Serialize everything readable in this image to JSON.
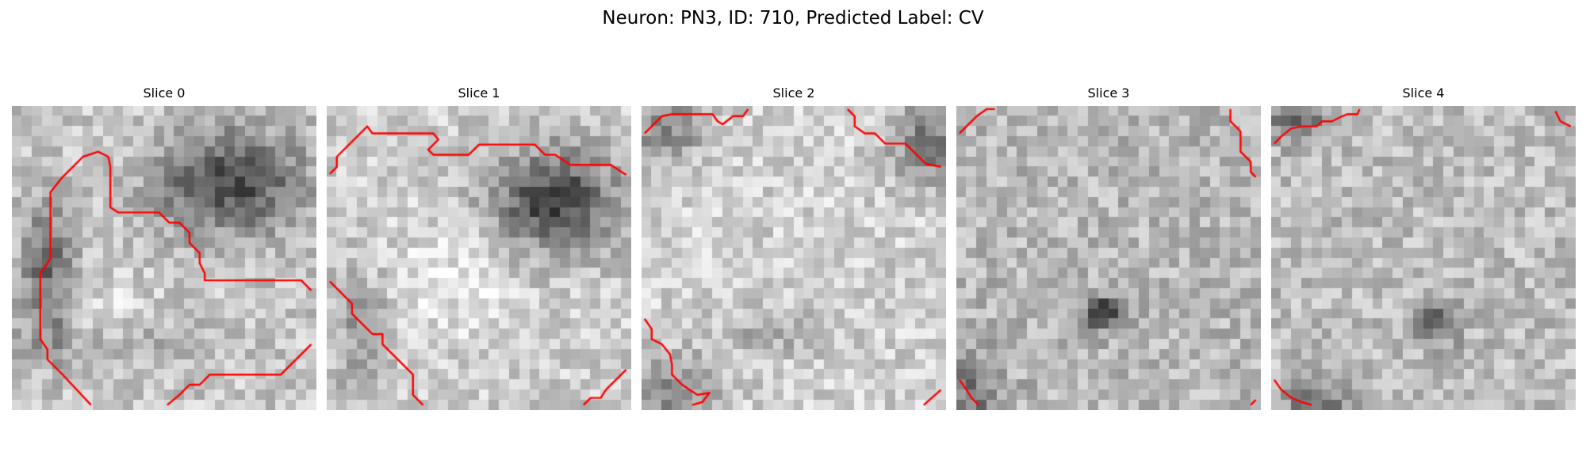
{
  "figure": {
    "title": "Neuron: PN3, ID: 710, Predicted Label: CV"
  },
  "slices": [
    {
      "label": "Slice 0"
    },
    {
      "label": "Slice 1"
    },
    {
      "label": "Slice 2"
    },
    {
      "label": "Slice 3"
    },
    {
      "label": "Slice 4"
    }
  ],
  "colors": {
    "contour": "#ff0000",
    "colormap": "gray"
  }
}
